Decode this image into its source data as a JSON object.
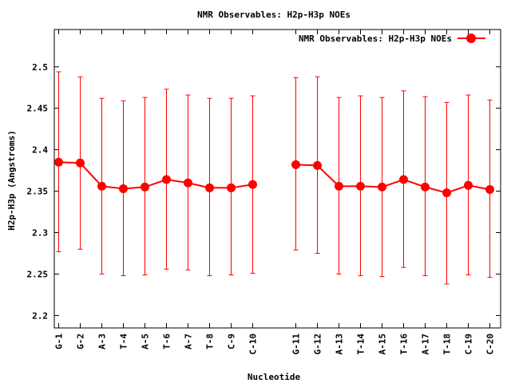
{
  "chart_data": {
    "type": "line",
    "title": "NMR Observables: H2p-H3p NOEs",
    "xlabel": "Nucleotide",
    "ylabel": "H2p-H3p (Angstroms)",
    "ylim": [
      2.185,
      2.545
    ],
    "yticks": [
      2.2,
      2.25,
      2.3,
      2.35,
      2.4,
      2.45,
      2.5
    ],
    "ytick_labels": [
      "2.2",
      "2.25",
      "2.3",
      "2.35",
      "2.4",
      "2.45",
      "2.5"
    ],
    "grid": false,
    "legend_position": "top-right",
    "colors": {
      "series": "#ff0000",
      "axis": "#000000"
    },
    "series": [
      {
        "name": "NMR Observables: H2p-H3p NOEs",
        "segments": [
          {
            "categories": [
              "G-1",
              "G-2",
              "A-3",
              "T-4",
              "A-5",
              "T-6",
              "A-7",
              "T-8",
              "C-9",
              "C-10"
            ],
            "values": [
              2.385,
              2.384,
              2.356,
              2.353,
              2.355,
              2.364,
              2.36,
              2.354,
              2.354,
              2.358
            ],
            "err_low": [
              2.277,
              2.28,
              2.25,
              2.248,
              2.249,
              2.256,
              2.255,
              2.248,
              2.249,
              2.251
            ],
            "err_high": [
              2.494,
              2.488,
              2.462,
              2.459,
              2.463,
              2.473,
              2.466,
              2.462,
              2.462,
              2.465
            ]
          },
          {
            "categories": [
              "G-11",
              "G-12",
              "A-13",
              "T-14",
              "A-15",
              "T-16",
              "A-17",
              "T-18",
              "C-19",
              "C-20"
            ],
            "values": [
              2.382,
              2.381,
              2.356,
              2.356,
              2.355,
              2.364,
              2.355,
              2.348,
              2.357,
              2.352
            ],
            "err_low": [
              2.279,
              2.275,
              2.25,
              2.248,
              2.247,
              2.258,
              2.248,
              2.238,
              2.249,
              2.246
            ],
            "err_high": [
              2.487,
              2.488,
              2.463,
              2.465,
              2.463,
              2.471,
              2.464,
              2.457,
              2.466,
              2.46
            ]
          }
        ]
      }
    ]
  }
}
